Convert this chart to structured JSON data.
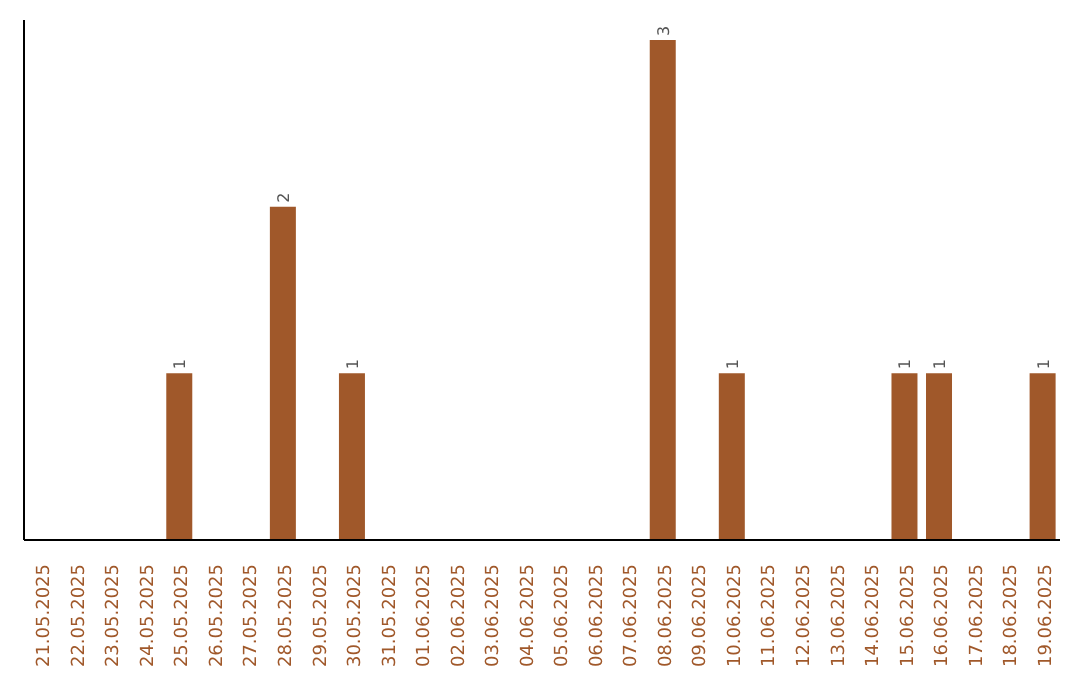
{
  "chart_data": {
    "type": "bar",
    "categories": [
      "21.05.2025",
      "22.05.2025",
      "23.05.2025",
      "24.05.2025",
      "25.05.2025",
      "26.05.2025",
      "27.05.2025",
      "28.05.2025",
      "29.05.2025",
      "30.05.2025",
      "31.05.2025",
      "01.06.2025",
      "02.06.2025",
      "03.06.2025",
      "04.06.2025",
      "05.06.2025",
      "06.06.2025",
      "07.06.2025",
      "08.06.2025",
      "09.06.2025",
      "10.06.2025",
      "11.06.2025",
      "12.06.2025",
      "13.06.2025",
      "14.06.2025",
      "15.06.2025",
      "16.06.2025",
      "17.06.2025",
      "18.06.2025",
      "19.06.2025"
    ],
    "values": [
      0,
      0,
      0,
      0,
      1,
      0,
      0,
      2,
      0,
      1,
      0,
      0,
      0,
      0,
      0,
      0,
      0,
      0,
      3,
      0,
      1,
      0,
      0,
      0,
      0,
      1,
      1,
      0,
      0,
      1
    ],
    "value_labels": [
      null,
      null,
      null,
      null,
      "1",
      null,
      null,
      "2",
      null,
      "1",
      null,
      null,
      null,
      null,
      null,
      null,
      null,
      null,
      "3",
      null,
      "1",
      null,
      null,
      null,
      null,
      "1",
      "1",
      null,
      null,
      "1"
    ],
    "color": "#a0582a",
    "tick_labels": "x"
  }
}
